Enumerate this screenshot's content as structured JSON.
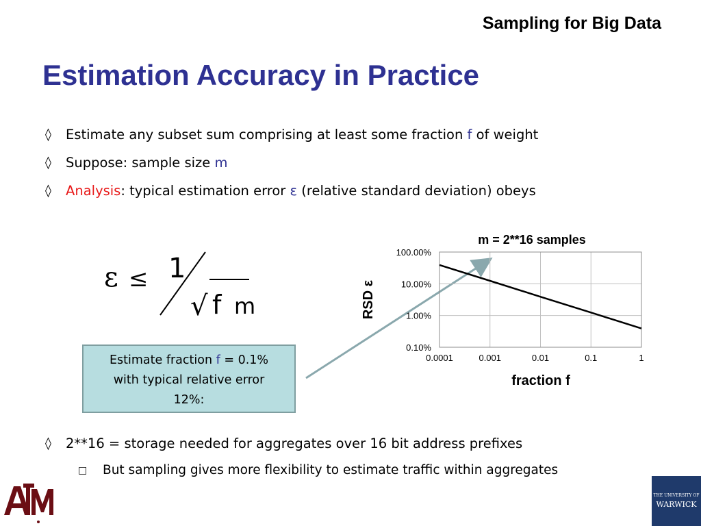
{
  "header": {
    "title": "Sampling for Big Data"
  },
  "slide": {
    "title": "Estimation Accuracy in Practice",
    "bullets": [
      {
        "bullet": "◊",
        "pre": "Estimate any subset sum comprising at least some fraction ",
        "hl": "f",
        "post": " of weight"
      },
      {
        "bullet": "◊",
        "pre": "Suppose: sample size ",
        "hl": "m",
        "post": ""
      },
      {
        "bullet": "◊",
        "lead": "Analysis",
        "pre": ": typical estimation error ",
        "hl": "ε",
        "post": " (relative standard deviation) obeys"
      }
    ],
    "formula": {
      "epsilon": "ε",
      "leq": "≤",
      "numerator": "1",
      "radical": "√",
      "f": "f",
      "m": "m"
    },
    "callout": {
      "line1_pre": "Estimate  fraction ",
      "line1_hl": "f",
      "line1_post": " = 0.1%",
      "line2": "with typical relative error",
      "line3": "12%:"
    },
    "bottom_bullet": {
      "bullet": "◊",
      "text": "2**16 = storage needed for aggregates over 16 bit address prefixes"
    },
    "sub_bullet": {
      "bullet": "□",
      "text": "But sampling gives more flexibility to estimate traffic within aggregates"
    }
  },
  "logos": {
    "left": "ATM",
    "right_small": "THE UNIVERSITY OF",
    "right_big": "WARWICK"
  },
  "colors": {
    "title": "#2e3192",
    "highlight_blue": "#2e3192",
    "highlight_red": "#e81a1a",
    "callout_bg": "#b7dde0",
    "arrow": "#8aa8ad"
  },
  "chart_data": {
    "type": "line",
    "title": "m = 2**16 samples",
    "xlabel": "fraction f",
    "ylabel": "RSD ε",
    "x_scale": "log",
    "y_scale": "log",
    "x_ticks": [
      "0.0001",
      "0.001",
      "0.01",
      "0.1",
      "1"
    ],
    "y_ticks": [
      "100.00%",
      "10.00%",
      "1.00%",
      "0.10%"
    ],
    "xlim": [
      0.0001,
      1
    ],
    "ylim": [
      0.001,
      1
    ],
    "grid": true,
    "series": [
      {
        "x": [
          0.0001,
          0.001,
          0.01,
          0.1,
          1
        ],
        "y": [
          0.39,
          0.124,
          0.039,
          0.0124,
          0.0039
        ]
      }
    ]
  }
}
